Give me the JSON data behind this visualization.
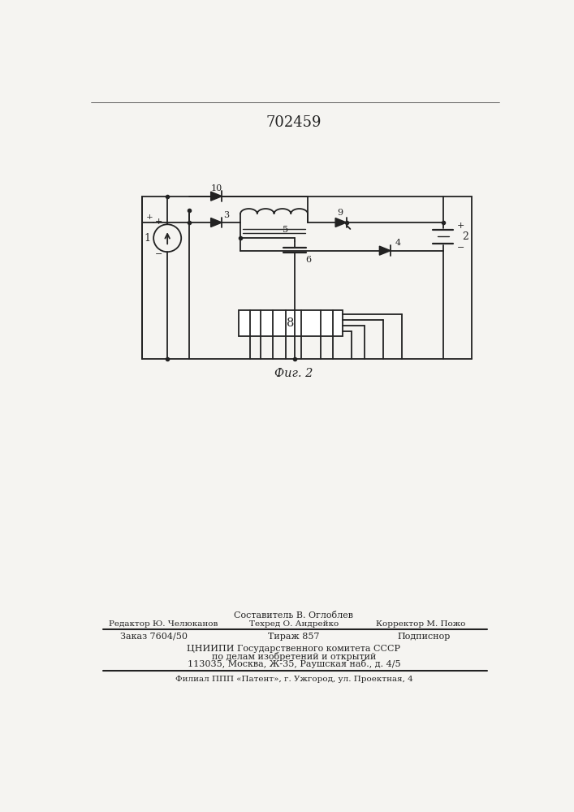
{
  "title": "702459",
  "background_color": "#f5f4f1",
  "line_color": "#222222",
  "text_color": "#222222",
  "fig_caption": "Фиг. 2",
  "footer": {
    "line1_center": "Составитель В. Оглоблев",
    "line2_left": "Редактор Ю. Челюканов",
    "line2_center": "Техред О. Андрейко",
    "line2_right": "Корректор М. Пожо",
    "order_left": "Заказ 7604/50",
    "order_center": "Тираж 857",
    "order_right": "Подписнор",
    "cnipi1": "ЦНИИПИ Государственного комитета СССР",
    "cnipi2": "по делам изобретений и открытий",
    "cnipi3": "113035, Москва, Ж-35, Раушская наб., д. 4/5",
    "filial": "Филиал ППП «Патент», г. Ужгород, ул. Проектная, 4"
  }
}
